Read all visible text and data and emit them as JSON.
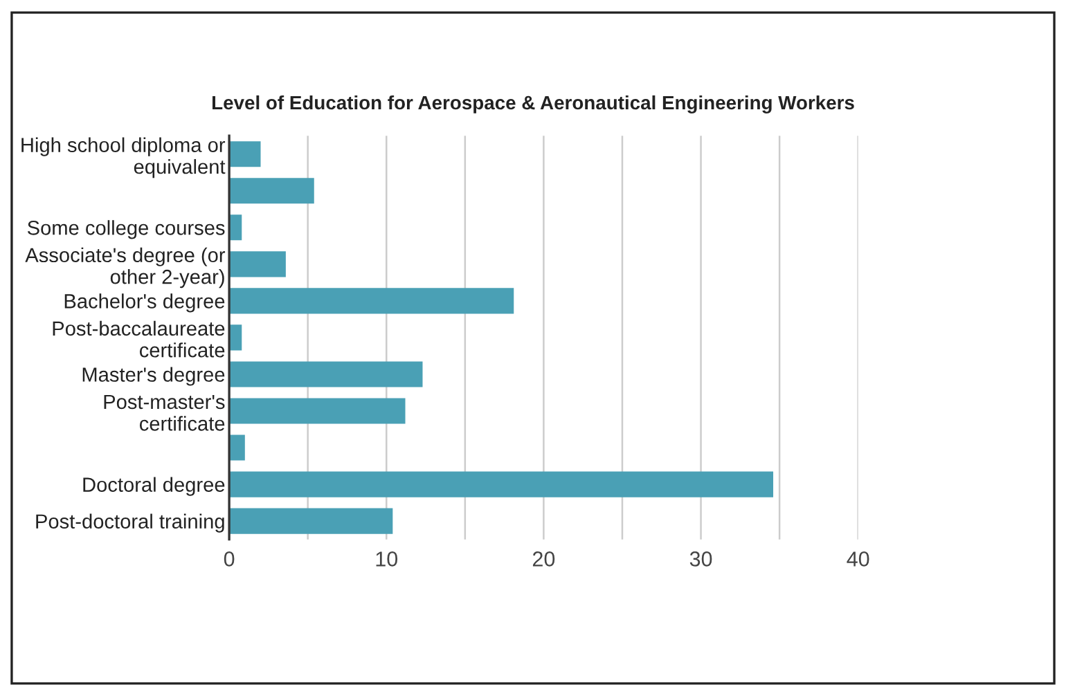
{
  "chart_data": {
    "type": "bar",
    "orientation": "horizontal",
    "title": "Level of Education for Aerospace & Aeronautical Engineering Workers",
    "categories": [
      "High school diploma or\nequivalent",
      null,
      "Some college courses",
      "Associate's degree (or\nother 2-year)",
      "Bachelor's degree",
      "Post-baccalaureate\ncertificate",
      "Master's degree",
      "Post-master's\ncertificate",
      null,
      "Doctoral degree",
      "Post-doctoral training"
    ],
    "values": [
      2.0,
      5.4,
      0.8,
      3.6,
      18.1,
      0.8,
      12.3,
      11.2,
      1.0,
      34.6,
      10.4
    ],
    "color": "#4aa0b5",
    "xlim": [
      0,
      40
    ],
    "xticks": [
      0,
      {
        "value": 5,
        "label": null
      },
      10,
      {
        "value": 15,
        "label": null
      },
      20,
      {
        "value": 25,
        "label": null
      },
      30,
      {
        "value": 35,
        "label": null
      },
      40
    ],
    "grid": "x",
    "legend": false
  }
}
